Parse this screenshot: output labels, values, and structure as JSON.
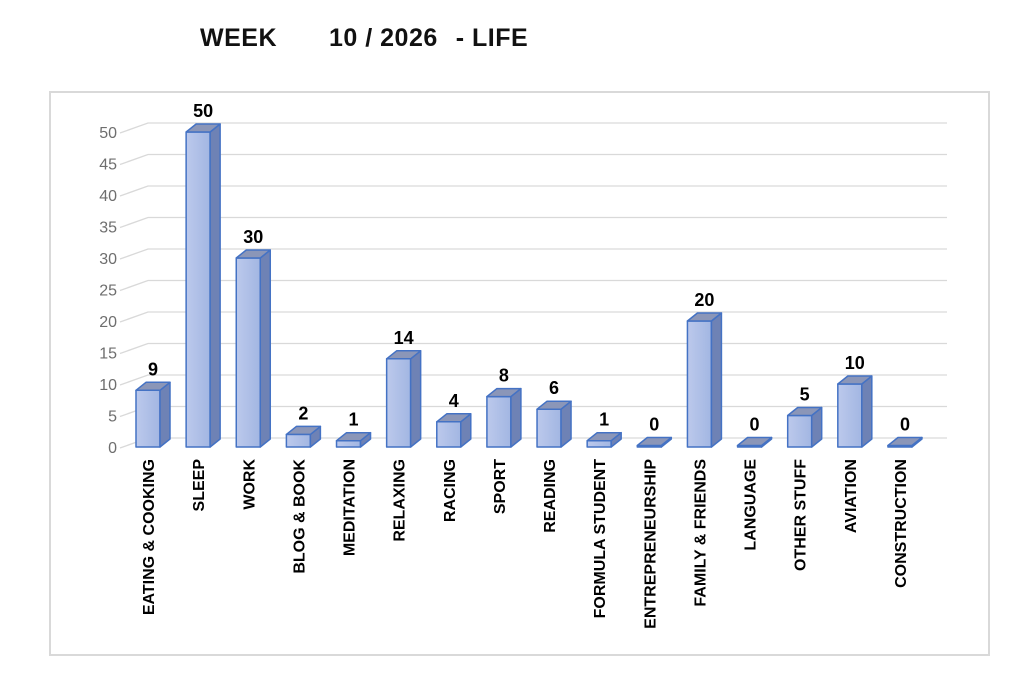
{
  "title": {
    "parts": [
      "WEEK",
      "10 / 2026",
      "- LIFE"
    ],
    "full": "WEEK 10 / 2026 - LIFE"
  },
  "chart_data": {
    "type": "bar",
    "style": "3d-column",
    "title": "WEEK 10 / 2026 - LIFE",
    "categories": [
      "EATING & COOKING",
      "SLEEP",
      "WORK",
      "BLOG & BOOK",
      "MEDITATION",
      "RELAXING",
      "RACING",
      "SPORT",
      "READING",
      "FORMULA STUDENT",
      "ENTREPRENEURSHIP",
      "FAMILY & FRIENDS",
      "LANGUAGE",
      "OTHER STUFF",
      "AVIATION",
      "CONSTRUCTION"
    ],
    "values": [
      9,
      50,
      30,
      2,
      1,
      14,
      4,
      8,
      6,
      1,
      0,
      20,
      0,
      5,
      10,
      0
    ],
    "data_labels": [
      "9",
      "50",
      "30",
      "2",
      "1",
      "14",
      "4",
      "8",
      "6",
      "1",
      "0",
      "20",
      "0",
      "5",
      "10",
      "0"
    ],
    "xlabel": "",
    "ylabel": "",
    "ylim": [
      0,
      50
    ],
    "ytick_step": 5,
    "yticks": [
      "0",
      "5",
      "10",
      "15",
      "20",
      "25",
      "30",
      "35",
      "40",
      "45",
      "50"
    ],
    "grid": true,
    "legend": "none",
    "colors": {
      "bar_front_light": "#bcc9ec",
      "bar_front_dark": "#a2b6e2",
      "bar_side": "#6e82b5",
      "bar_top": "#8b96b8",
      "bar_border": "#4472c4",
      "gridline": "#d9d9d9",
      "axis_text": "#6e6e6e",
      "label_text": "#000000",
      "frame_border": "#d9d9d9",
      "background": "#ffffff"
    }
  }
}
